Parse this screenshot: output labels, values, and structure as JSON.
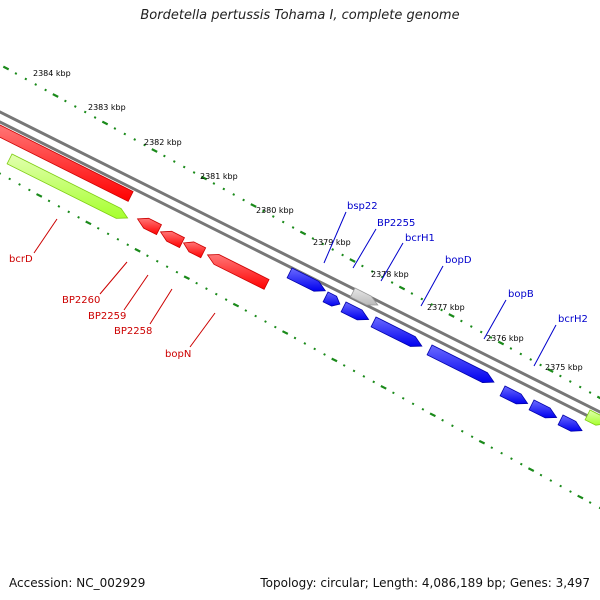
{
  "title": "Bordetella pertussis Tohama I, complete genome",
  "footer": {
    "accession": "Accession: NC_002929",
    "summary": "Topology: circular; Length: 4,086,189 bp; Genes: 3,497"
  },
  "colors": {
    "red": "#ff0000",
    "blue": "#0000ee",
    "lime": "#a6ff2e",
    "gray": "#bbbbbb",
    "backbone": "#777777",
    "tick": "#1a8a1a",
    "red_label": "#cc0000",
    "blue_label": "#0000cc"
  },
  "scale_ticks": [
    {
      "label": "2384 kbp"
    },
    {
      "label": "2383 kbp"
    },
    {
      "label": "2382 kbp"
    },
    {
      "label": "2381 kbp"
    },
    {
      "label": "2380 kbp"
    },
    {
      "label": "2379 kbp"
    },
    {
      "label": "2378 kbp"
    },
    {
      "label": "2377 kbp"
    },
    {
      "label": "2376 kbp"
    },
    {
      "label": "2375 kbp"
    }
  ],
  "genes": [
    {
      "label": "bcrD",
      "color": "lime",
      "strand": "forward"
    },
    {
      "label": "BP2260",
      "color": "red",
      "strand": "reverse"
    },
    {
      "label": "BP2259",
      "color": "red",
      "strand": "reverse"
    },
    {
      "label": "BP2258",
      "color": "red",
      "strand": "reverse"
    },
    {
      "label": "bopN",
      "color": "red",
      "strand": "reverse"
    },
    {
      "label": "bsp22",
      "color": "blue",
      "strand": "forward"
    },
    {
      "label": "BP2255",
      "color": "gray",
      "strand": "forward"
    },
    {
      "label": "bcrH1",
      "color": "blue",
      "strand": "forward"
    },
    {
      "label": "bopD",
      "color": "blue",
      "strand": "forward"
    },
    {
      "label": "bopB",
      "color": "blue",
      "strand": "forward"
    },
    {
      "label": "bcrH2",
      "color": "blue",
      "strand": "forward"
    }
  ]
}
